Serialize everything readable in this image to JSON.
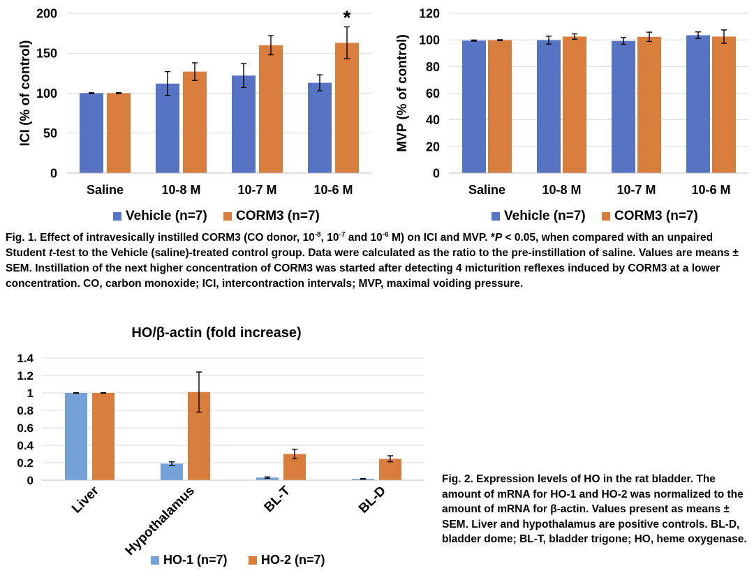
{
  "chart_data": [
    {
      "type": "bar",
      "ylabel": "ICI (% of control)",
      "categories": [
        "Saline",
        "10-8 M",
        "10-7 M",
        "10-6 M"
      ],
      "ylim": [
        0,
        200
      ],
      "yticks": [
        0,
        50,
        100,
        150,
        200
      ],
      "grid": true,
      "legend_position": "bottom",
      "series": [
        {
          "name": "Vehicle (n=7)",
          "color": "#5773c4",
          "values": [
            100,
            112,
            122,
            113
          ],
          "errors": [
            0.6,
            15,
            15,
            10
          ]
        },
        {
          "name": "CORM3 (n=7)",
          "color": "#d97d3c",
          "values": [
            100,
            127,
            160,
            163
          ],
          "errors": [
            0.6,
            11,
            12,
            20
          ]
        }
      ],
      "annotations": [
        {
          "text": "*",
          "category": "10-6 M",
          "series": "CORM3 (n=7)"
        }
      ]
    },
    {
      "type": "bar",
      "ylabel": "MVP (% of control)",
      "categories": [
        "Saline",
        "10-8 M",
        "10-7 M",
        "10-6 M"
      ],
      "ylim": [
        0,
        120
      ],
      "yticks": [
        0,
        20,
        40,
        60,
        80,
        100,
        120
      ],
      "grid": true,
      "legend_position": "bottom",
      "series": [
        {
          "name": "Vehicle (n=7)",
          "color": "#5773c4",
          "values": [
            99.5,
            99.8,
            99.2,
            103.5
          ],
          "errors": [
            0.4,
            3,
            2.5,
            2.5
          ]
        },
        {
          "name": "CORM3 (n=7)",
          "color": "#d97d3c",
          "values": [
            99.8,
            102.5,
            102.3,
            102.5
          ],
          "errors": [
            0.3,
            2,
            3.5,
            5
          ]
        }
      ],
      "annotations": []
    },
    {
      "type": "bar",
      "title": "HO/β-actin (fold increase)",
      "categories": [
        "Liver",
        "Hypothalamus",
        "BL-T",
        "BL-D"
      ],
      "ylim": [
        0,
        1.4
      ],
      "yticks": [
        0,
        0.2,
        0.4,
        0.6,
        0.8,
        1,
        1.2,
        1.4
      ],
      "grid": true,
      "legend_position": "bottom",
      "series": [
        {
          "name": "HO-1 (n=7)",
          "color": "#73a2d8",
          "values": [
            1.0,
            0.19,
            0.03,
            0.015
          ],
          "errors": [
            0.003,
            0.02,
            0.008,
            0.004
          ]
        },
        {
          "name": "HO-2 (n=7)",
          "color": "#d97d3c",
          "values": [
            1.0,
            1.01,
            0.3,
            0.245
          ],
          "errors": [
            0.003,
            0.23,
            0.055,
            0.035
          ]
        }
      ]
    }
  ],
  "fig1_caption": {
    "p1": "Fig. 1. Effect of intravesically instilled CORM3 (CO donor, 10",
    "sup1": "-8",
    "p2": ", 10",
    "sup2": "-7",
    "p3": " and 10",
    "sup3": "-6",
    "p4": " M) on ICI and MVP. *",
    "p_italic": "P",
    "p5": " < 0.05, when compared with an unpaired Student ",
    "t_italic": "t",
    "p6": "-test to the Vehicle (saline)-treated control group. Data were calculated as the ratio to the pre-instillation of saline. Values are means ± SEM. Instillation of the next higher concentration of CORM3 was started after detecting 4 micturition reflexes induced by CORM3 at a lower concentration. CO, carbon monoxide; ICI, intercontraction intervals; MVP, maximal voiding pressure."
  },
  "fig2_caption": "Fig. 2. Expression levels of HO in the rat bladder. The amount of mRNA for HO-1 and HO-2 was normalized to the amount of mRNA for β-actin. Values present as means ± SEM. Liver and hypothalamus are positive controls. BL-D, bladder dome; BL-T, bladder trigone; HO, heme oxygenase."
}
